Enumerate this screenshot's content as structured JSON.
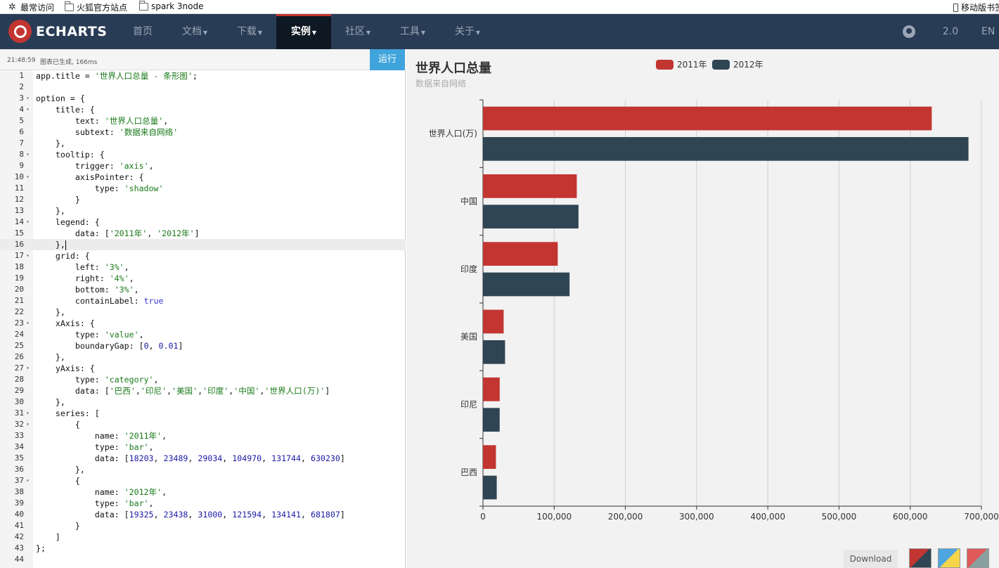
{
  "bookmarks": [
    {
      "label": "最常访问",
      "icon": "gear-icon"
    },
    {
      "label": "火狐官方站点",
      "icon": "folder-icon"
    },
    {
      "label": "spark 3node",
      "icon": "folder-icon"
    },
    {
      "label": "移动版书签",
      "icon": "phone-icon"
    }
  ],
  "nav": {
    "logo": "ECHARTS",
    "items": [
      {
        "label": "首页",
        "dropdown": false
      },
      {
        "label": "文档",
        "dropdown": true
      },
      {
        "label": "下载",
        "dropdown": true
      },
      {
        "label": "实例",
        "dropdown": true,
        "active": true
      },
      {
        "label": "社区",
        "dropdown": true
      },
      {
        "label": "工具",
        "dropdown": true
      },
      {
        "label": "关于",
        "dropdown": true
      }
    ],
    "version": "2.0",
    "lang": "EN",
    "github_icon": "github-icon",
    "colors": {
      "bg": "#293c55",
      "active_bg": "#0e1822",
      "accent": "#c23531"
    }
  },
  "editor": {
    "status_time": "21:48:59",
    "status_msg": "图表已生成, 166ms",
    "run_label": "运行",
    "current_line": 16,
    "lines": [
      "app.title = '世界人口总量 - 条形图';",
      "",
      "option = {",
      "    title: {",
      "        text: '世界人口总量',",
      "        subtext: '数据来自网络'",
      "    },",
      "    tooltip: {",
      "        trigger: 'axis',",
      "        axisPointer: {",
      "            type: 'shadow'",
      "        }",
      "    },",
      "    legend: {",
      "        data: ['2011年', '2012年']",
      "    },",
      "    grid: {",
      "        left: '3%',",
      "        right: '4%',",
      "        bottom: '3%',",
      "        containLabel: true",
      "    },",
      "    xAxis: {",
      "        type: 'value',",
      "        boundaryGap: [0, 0.01]",
      "    },",
      "    yAxis: {",
      "        type: 'category',",
      "        data: ['巴西','印尼','美国','印度','中国','世界人口(万)']",
      "    },",
      "    series: [",
      "        {",
      "            name: '2011年',",
      "            type: 'bar',",
      "            data: [18203, 23489, 29034, 104970, 131744, 630230]",
      "        },",
      "        {",
      "            name: '2012年',",
      "            type: 'bar',",
      "            data: [19325, 23438, 31000, 121594, 134141, 681807]",
      "        }",
      "    ]",
      "};",
      ""
    ],
    "folds": [
      3,
      4,
      8,
      10,
      14,
      17,
      23,
      27,
      31,
      32,
      37
    ]
  },
  "chart_panel": {
    "download_label": "Download"
  },
  "chart_data": {
    "type": "bar",
    "orientation": "horizontal",
    "title": "世界人口总量",
    "subtitle": "数据来自网络",
    "categories": [
      "巴西",
      "印尼",
      "美国",
      "印度",
      "中国",
      "世界人口(万)"
    ],
    "series": [
      {
        "name": "2011年",
        "color": "#c23531",
        "values": [
          18203,
          23489,
          29034,
          104970,
          131744,
          630230
        ]
      },
      {
        "name": "2012年",
        "color": "#2f4554",
        "values": [
          19325,
          23438,
          31000,
          121594,
          134141,
          681807
        ]
      }
    ],
    "xlim": [
      0,
      700000
    ],
    "xticks": [
      "0",
      "100,000",
      "200,000",
      "300,000",
      "400,000",
      "500,000",
      "600,000",
      "700,000"
    ],
    "grid": true,
    "legend_position": "top-center"
  }
}
